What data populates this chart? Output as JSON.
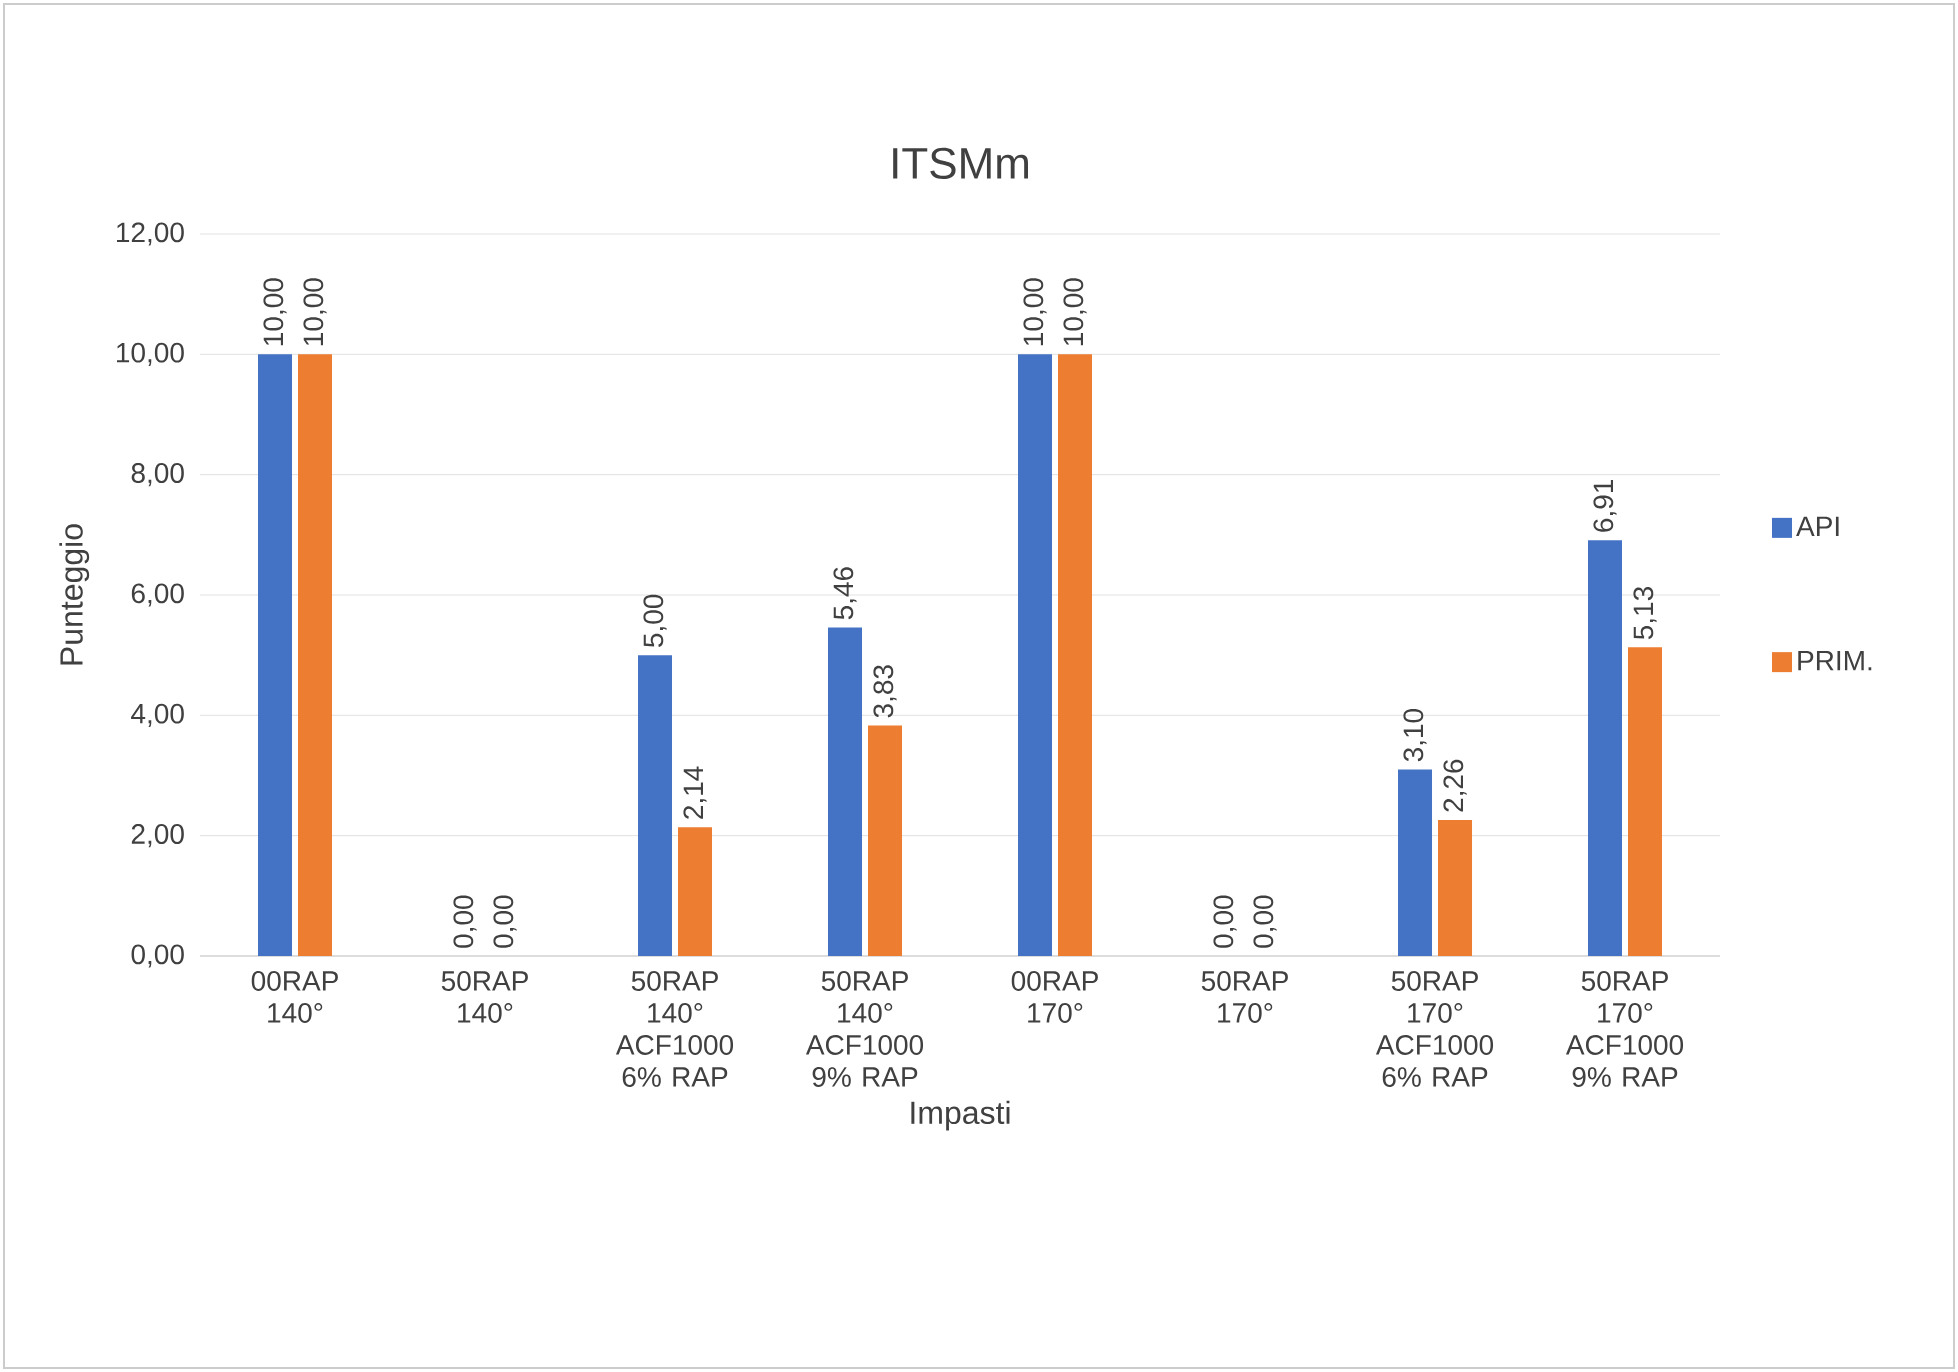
{
  "chart_data": {
    "type": "bar",
    "title": "ITSMm",
    "xlabel": "Impasti",
    "ylabel": "Punteggio",
    "categories": [
      "00RAP 140°",
      "50RAP 140°",
      "50RAP 140° ACF1000 6% RAP",
      "50RAP 140° ACF1000 9% RAP",
      "00RAP 170°",
      "50RAP 170°",
      "50RAP 170° ACF1000 6% RAP",
      "50RAP 170° ACF1000 9% RAP"
    ],
    "series": [
      {
        "name": "API",
        "color": "#4472c4",
        "values": [
          10,
          0,
          5,
          5.46,
          10,
          0,
          3.1,
          6.91
        ],
        "value_labels": [
          "10,00",
          "0,00",
          "5,00",
          "5,46",
          "10,00",
          "0,00",
          "3,10",
          "6,91"
        ]
      },
      {
        "name": "PRIM.",
        "color": "#ed7d31",
        "values": [
          10,
          0,
          2.14,
          3.83,
          10,
          0,
          2.26,
          5.13
        ],
        "value_labels": [
          "10,00",
          "0,00",
          "2,14",
          "3,83",
          "10,00",
          "0,00",
          "2,26",
          "5,13"
        ]
      }
    ],
    "ylim": [
      0,
      12
    ],
    "yticks": [
      {
        "value": 0,
        "label": "0,00"
      },
      {
        "value": 2,
        "label": "2,00"
      },
      {
        "value": 4,
        "label": "4,00"
      },
      {
        "value": 6,
        "label": "6,00"
      },
      {
        "value": 8,
        "label": "8,00"
      },
      {
        "value": 10,
        "label": "10,00"
      },
      {
        "value": 12,
        "label": "12,00"
      }
    ],
    "grid": "y",
    "legend": "right"
  }
}
